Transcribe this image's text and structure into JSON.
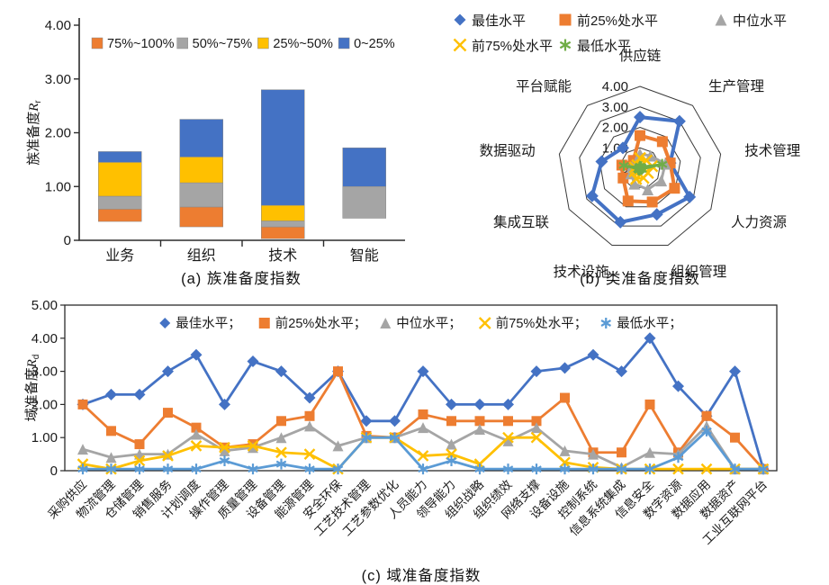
{
  "figure_note": "Three-panel readiness-index figure",
  "chart_data": [
    {
      "id": "a",
      "type": "bar",
      "stacked": true,
      "title": "(a) 族准备度指数",
      "ylabel": {
        "prefix": "族准备度",
        "variable": "R",
        "subscript": "r"
      },
      "ylim": [
        0,
        4
      ],
      "yticks": [
        "0",
        "1.00",
        "2.00",
        "3.00",
        "4.00"
      ],
      "grid": false,
      "legend_position": "top-inside",
      "categories": [
        "业务",
        "组织",
        "技术",
        "智能"
      ],
      "series": [
        {
          "name": "75%~100%",
          "color": "#ED7D31",
          "ranges": [
            [
              0.35,
              0.58
            ],
            [
              0.25,
              0.62
            ],
            [
              0.03,
              0.25
            ],
            null
          ]
        },
        {
          "name": "50%~75%",
          "color": "#A5A5A5",
          "ranges": [
            [
              0.58,
              0.82
            ],
            [
              0.62,
              1.07
            ],
            [
              0.25,
              0.36
            ],
            [
              0.41,
              1.0
            ]
          ]
        },
        {
          "name": "25%~50%",
          "color": "#FFC000",
          "ranges": [
            [
              0.82,
              1.45
            ],
            [
              1.07,
              1.55
            ],
            [
              0.36,
              0.65
            ],
            null
          ]
        },
        {
          "name": "0~25%",
          "color": "#4472C4",
          "ranges": [
            [
              1.45,
              1.65
            ],
            [
              1.55,
              2.25
            ],
            [
              0.65,
              2.8
            ],
            [
              1.0,
              1.72
            ]
          ]
        }
      ]
    },
    {
      "id": "b",
      "type": "radar",
      "title": "(b) 类准备度指数",
      "rlim": [
        0,
        4
      ],
      "rticks": [
        "0",
        "1.00",
        "2.00",
        "3.00",
        "4.00"
      ],
      "categories": [
        "供应链",
        "生产管理",
        "技术管理",
        "人力资源",
        "组织管理",
        "技术设施",
        "集成互联",
        "数据驱动",
        "平台赋能"
      ],
      "series": [
        {
          "name": "最佳水平",
          "marker": "diamond",
          "color": "#4472C4",
          "values": [
            2.5,
            3.0,
            1.5,
            2.8,
            2.4,
            2.8,
            2.7,
            1.9,
            1.3
          ]
        },
        {
          "name": "前25%处水平",
          "marker": "square",
          "color": "#ED7D31",
          "values": [
            1.6,
            1.7,
            1.5,
            1.95,
            1.75,
            1.7,
            0.95,
            0.9,
            0.5
          ]
        },
        {
          "name": "中位水平",
          "marker": "triangle",
          "color": "#A5A5A5",
          "values": [
            0.7,
            0.8,
            1.25,
            1.2,
            1.1,
            0.8,
            0.5,
            0.4,
            0.3
          ]
        },
        {
          "name": "前75%处水平",
          "marker": "x",
          "color": "#FFC000",
          "values": [
            0.5,
            0.5,
            0.6,
            0.45,
            0.5,
            0.55,
            0.3,
            0.25,
            0.2
          ]
        },
        {
          "name": "最低水平",
          "marker": "asterisk",
          "color": "#70AD47",
          "values": [
            0.1,
            0.1,
            1.1,
            0.1,
            0.05,
            0.1,
            0.1,
            0.8,
            0.05
          ]
        }
      ]
    },
    {
      "id": "c",
      "type": "line",
      "title": "(c) 域准备度指数",
      "ylabel": {
        "prefix": "域准备度",
        "variable": "R",
        "subscript": "d"
      },
      "ylim": [
        0,
        5
      ],
      "yticks": [
        "0",
        "1.00",
        "2.00",
        "3.00",
        "4.00",
        "5.00"
      ],
      "grid": false,
      "legend_position": "top-inside",
      "categories": [
        "采购供应",
        "物流管理",
        "仓储管理",
        "销售服务",
        "计划调度",
        "操作管理",
        "质量管理",
        "设备管理",
        "能源管理",
        "安全环保",
        "工艺技术管理",
        "工艺参数优化",
        "人员能力",
        "领导能力",
        "组织战略",
        "组织绩效",
        "网络支撑",
        "设备设施",
        "控制系统",
        "信息系统集成",
        "信息安全",
        "数字资源",
        "数据应用",
        "数据资产",
        "工业互联网平台"
      ],
      "series": [
        {
          "name": "最佳水平；",
          "marker": "diamond",
          "color": "#4472C4",
          "values": [
            2.0,
            2.3,
            2.3,
            3.0,
            3.5,
            2.0,
            3.3,
            3.0,
            2.2,
            3.0,
            1.5,
            1.5,
            3.0,
            2.0,
            2.0,
            2.0,
            3.0,
            3.1,
            3.5,
            3.0,
            4.0,
            2.55,
            1.65,
            3.0,
            0.05
          ]
        },
        {
          "name": "前25%处水平；",
          "marker": "square",
          "color": "#ED7D31",
          "values": [
            2.0,
            1.2,
            0.8,
            1.75,
            1.3,
            0.7,
            0.8,
            1.5,
            1.65,
            3.0,
            1.05,
            1.0,
            1.7,
            1.5,
            1.5,
            1.5,
            1.5,
            2.2,
            0.55,
            0.55,
            2.0,
            0.55,
            1.65,
            1.0,
            0.05
          ]
        },
        {
          "name": "中位水平；",
          "marker": "triangle",
          "color": "#A5A5A5",
          "values": [
            0.65,
            0.4,
            0.5,
            0.5,
            1.1,
            0.6,
            0.7,
            1.0,
            1.35,
            0.75,
            1.0,
            1.0,
            1.3,
            0.8,
            1.25,
            0.9,
            1.3,
            0.6,
            0.5,
            0.1,
            0.55,
            0.5,
            1.35,
            0.05,
            0.05
          ]
        },
        {
          "name": "前75%处水平；",
          "marker": "x",
          "color": "#FFC000",
          "values": [
            0.2,
            0.05,
            0.3,
            0.45,
            0.75,
            0.7,
            0.75,
            0.55,
            0.5,
            0.05,
            1.0,
            1.0,
            0.45,
            0.5,
            0.2,
            1.0,
            1.0,
            0.25,
            0.1,
            0.05,
            0.05,
            0.05,
            0.05,
            0.05,
            0.05
          ]
        },
        {
          "name": "最低水平；",
          "marker": "asterisk",
          "color": "#5B9BD5",
          "values": [
            0.05,
            0.05,
            0.05,
            0.05,
            0.05,
            0.3,
            0.05,
            0.2,
            0.05,
            0.05,
            1.0,
            1.0,
            0.05,
            0.3,
            0.05,
            0.05,
            0.05,
            0.05,
            0.05,
            0.05,
            0.05,
            0.4,
            1.2,
            0.05,
            0.05
          ]
        }
      ]
    }
  ]
}
